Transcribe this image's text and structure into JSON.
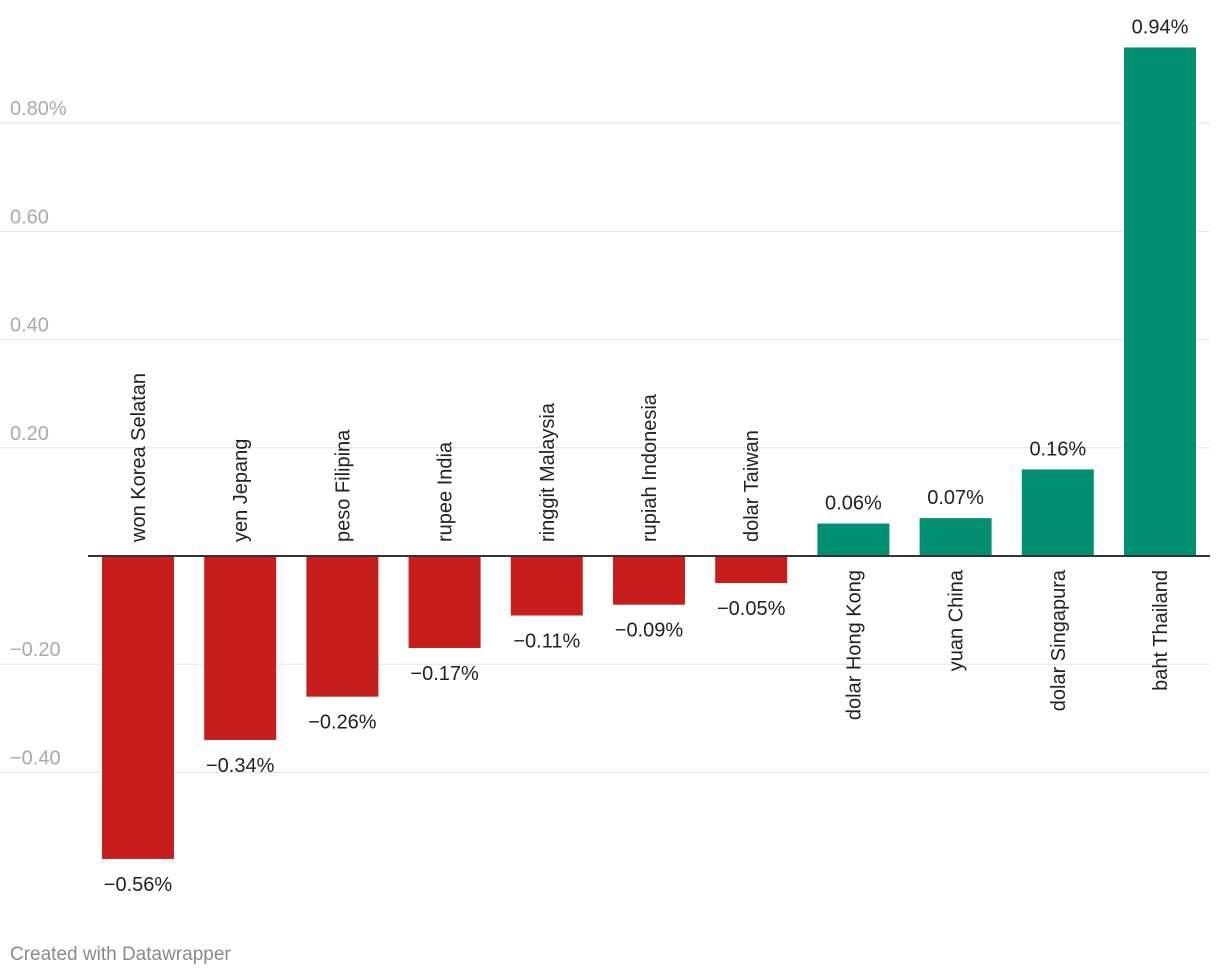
{
  "chart_data": {
    "type": "bar",
    "categories": [
      "won Korea Selatan",
      "yen Jepang",
      "peso Filipina",
      "rupee India",
      "ringgit Malaysia",
      "rupiah Indonesia",
      "dolar Taiwan",
      "dolar Hong Kong",
      "yuan China",
      "dolar Singapura",
      "baht Thailand"
    ],
    "values": [
      -0.56,
      -0.34,
      -0.26,
      -0.17,
      -0.11,
      -0.09,
      -0.05,
      0.06,
      0.07,
      0.16,
      0.94
    ],
    "value_labels": [
      "−0.56%",
      "−0.34%",
      "−0.26%",
      "−0.17%",
      "−0.11%",
      "−0.09%",
      "−0.05%",
      "0.06%",
      "0.07%",
      "0.16%",
      "0.94%"
    ],
    "y_ticks": [
      0.8,
      0.6,
      0.4,
      0.2,
      -0.2,
      -0.4
    ],
    "y_tick_labels": [
      "0.80%",
      "0.60",
      "0.40",
      "0.20",
      "−0.20",
      "−0.40"
    ],
    "ylim": [
      -0.56,
      0.94
    ],
    "grid": true,
    "colors": {
      "negative": "#c71e1d",
      "positive": "#008f70"
    }
  },
  "credit": "Created with Datawrapper"
}
